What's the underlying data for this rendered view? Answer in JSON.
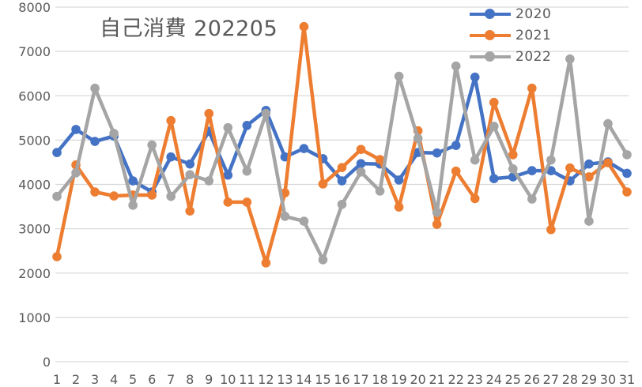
{
  "chart_data": {
    "type": "line",
    "title": "自己消費 202205",
    "xlabel": "",
    "ylabel": "",
    "ylim": [
      0,
      8000
    ],
    "yticks": [
      0,
      1000,
      2000,
      3000,
      4000,
      5000,
      6000,
      7000,
      8000
    ],
    "grid": true,
    "legend_position": "top-right (inside plot)",
    "categories": [
      "1",
      "2",
      "3",
      "4",
      "5",
      "6",
      "7",
      "8",
      "9",
      "10",
      "11",
      "12",
      "13",
      "14",
      "15",
      "16",
      "17",
      "18",
      "19",
      "20",
      "21",
      "22",
      "23",
      "24",
      "25",
      "26",
      "27",
      "28",
      "29",
      "30",
      "31"
    ],
    "series": [
      {
        "name": "2020",
        "color": "#4472C4",
        "values": [
          4720,
          5240,
          4970,
          5090,
          4080,
          3830,
          4620,
          4460,
          5200,
          4210,
          5330,
          5670,
          4620,
          4810,
          4580,
          4080,
          4470,
          4460,
          4100,
          4720,
          4710,
          4880,
          6420,
          4130,
          4170,
          4310,
          4310,
          4080,
          4460,
          4510,
          4250
        ]
      },
      {
        "name": "2021",
        "color": "#ED7D31",
        "values": [
          2370,
          4440,
          3830,
          3740,
          3760,
          3760,
          5440,
          3400,
          5600,
          3600,
          3600,
          2230,
          3810,
          7560,
          4010,
          4380,
          4790,
          4560,
          3490,
          5210,
          3100,
          4300,
          3680,
          5850,
          4670,
          6170,
          2980,
          4370,
          4170,
          4490,
          3830
        ]
      },
      {
        "name": "2022",
        "color": "#A5A5A5",
        "values": [
          3730,
          4260,
          6170,
          5150,
          3530,
          4890,
          3730,
          4220,
          4080,
          5280,
          4300,
          5600,
          3280,
          3170,
          2300,
          3550,
          4280,
          3850,
          6440,
          5040,
          3370,
          6670,
          4550,
          5310,
          4350,
          3670,
          4550,
          6830,
          3170,
          5370,
          4670
        ]
      }
    ]
  },
  "title": "自己消費 202205",
  "legend": [
    {
      "label": "2020",
      "color": "#4472C4"
    },
    {
      "label": "2021",
      "color": "#ED7D31"
    },
    {
      "label": "2022",
      "color": "#A5A5A5"
    }
  ],
  "axis": {
    "y_labels": [
      "0",
      "1000",
      "2000",
      "3000",
      "4000",
      "5000",
      "6000",
      "7000",
      "8000"
    ],
    "x_labels": [
      "1",
      "2",
      "3",
      "4",
      "5",
      "6",
      "7",
      "8",
      "9",
      "10",
      "11",
      "12",
      "13",
      "14",
      "15",
      "16",
      "17",
      "18",
      "19",
      "20",
      "21",
      "22",
      "23",
      "24",
      "25",
      "26",
      "27",
      "28",
      "29",
      "30",
      "31"
    ]
  },
  "colors": {
    "gridline": "#D9D9D9",
    "text": "#595959",
    "background": "#FFFFFF"
  }
}
